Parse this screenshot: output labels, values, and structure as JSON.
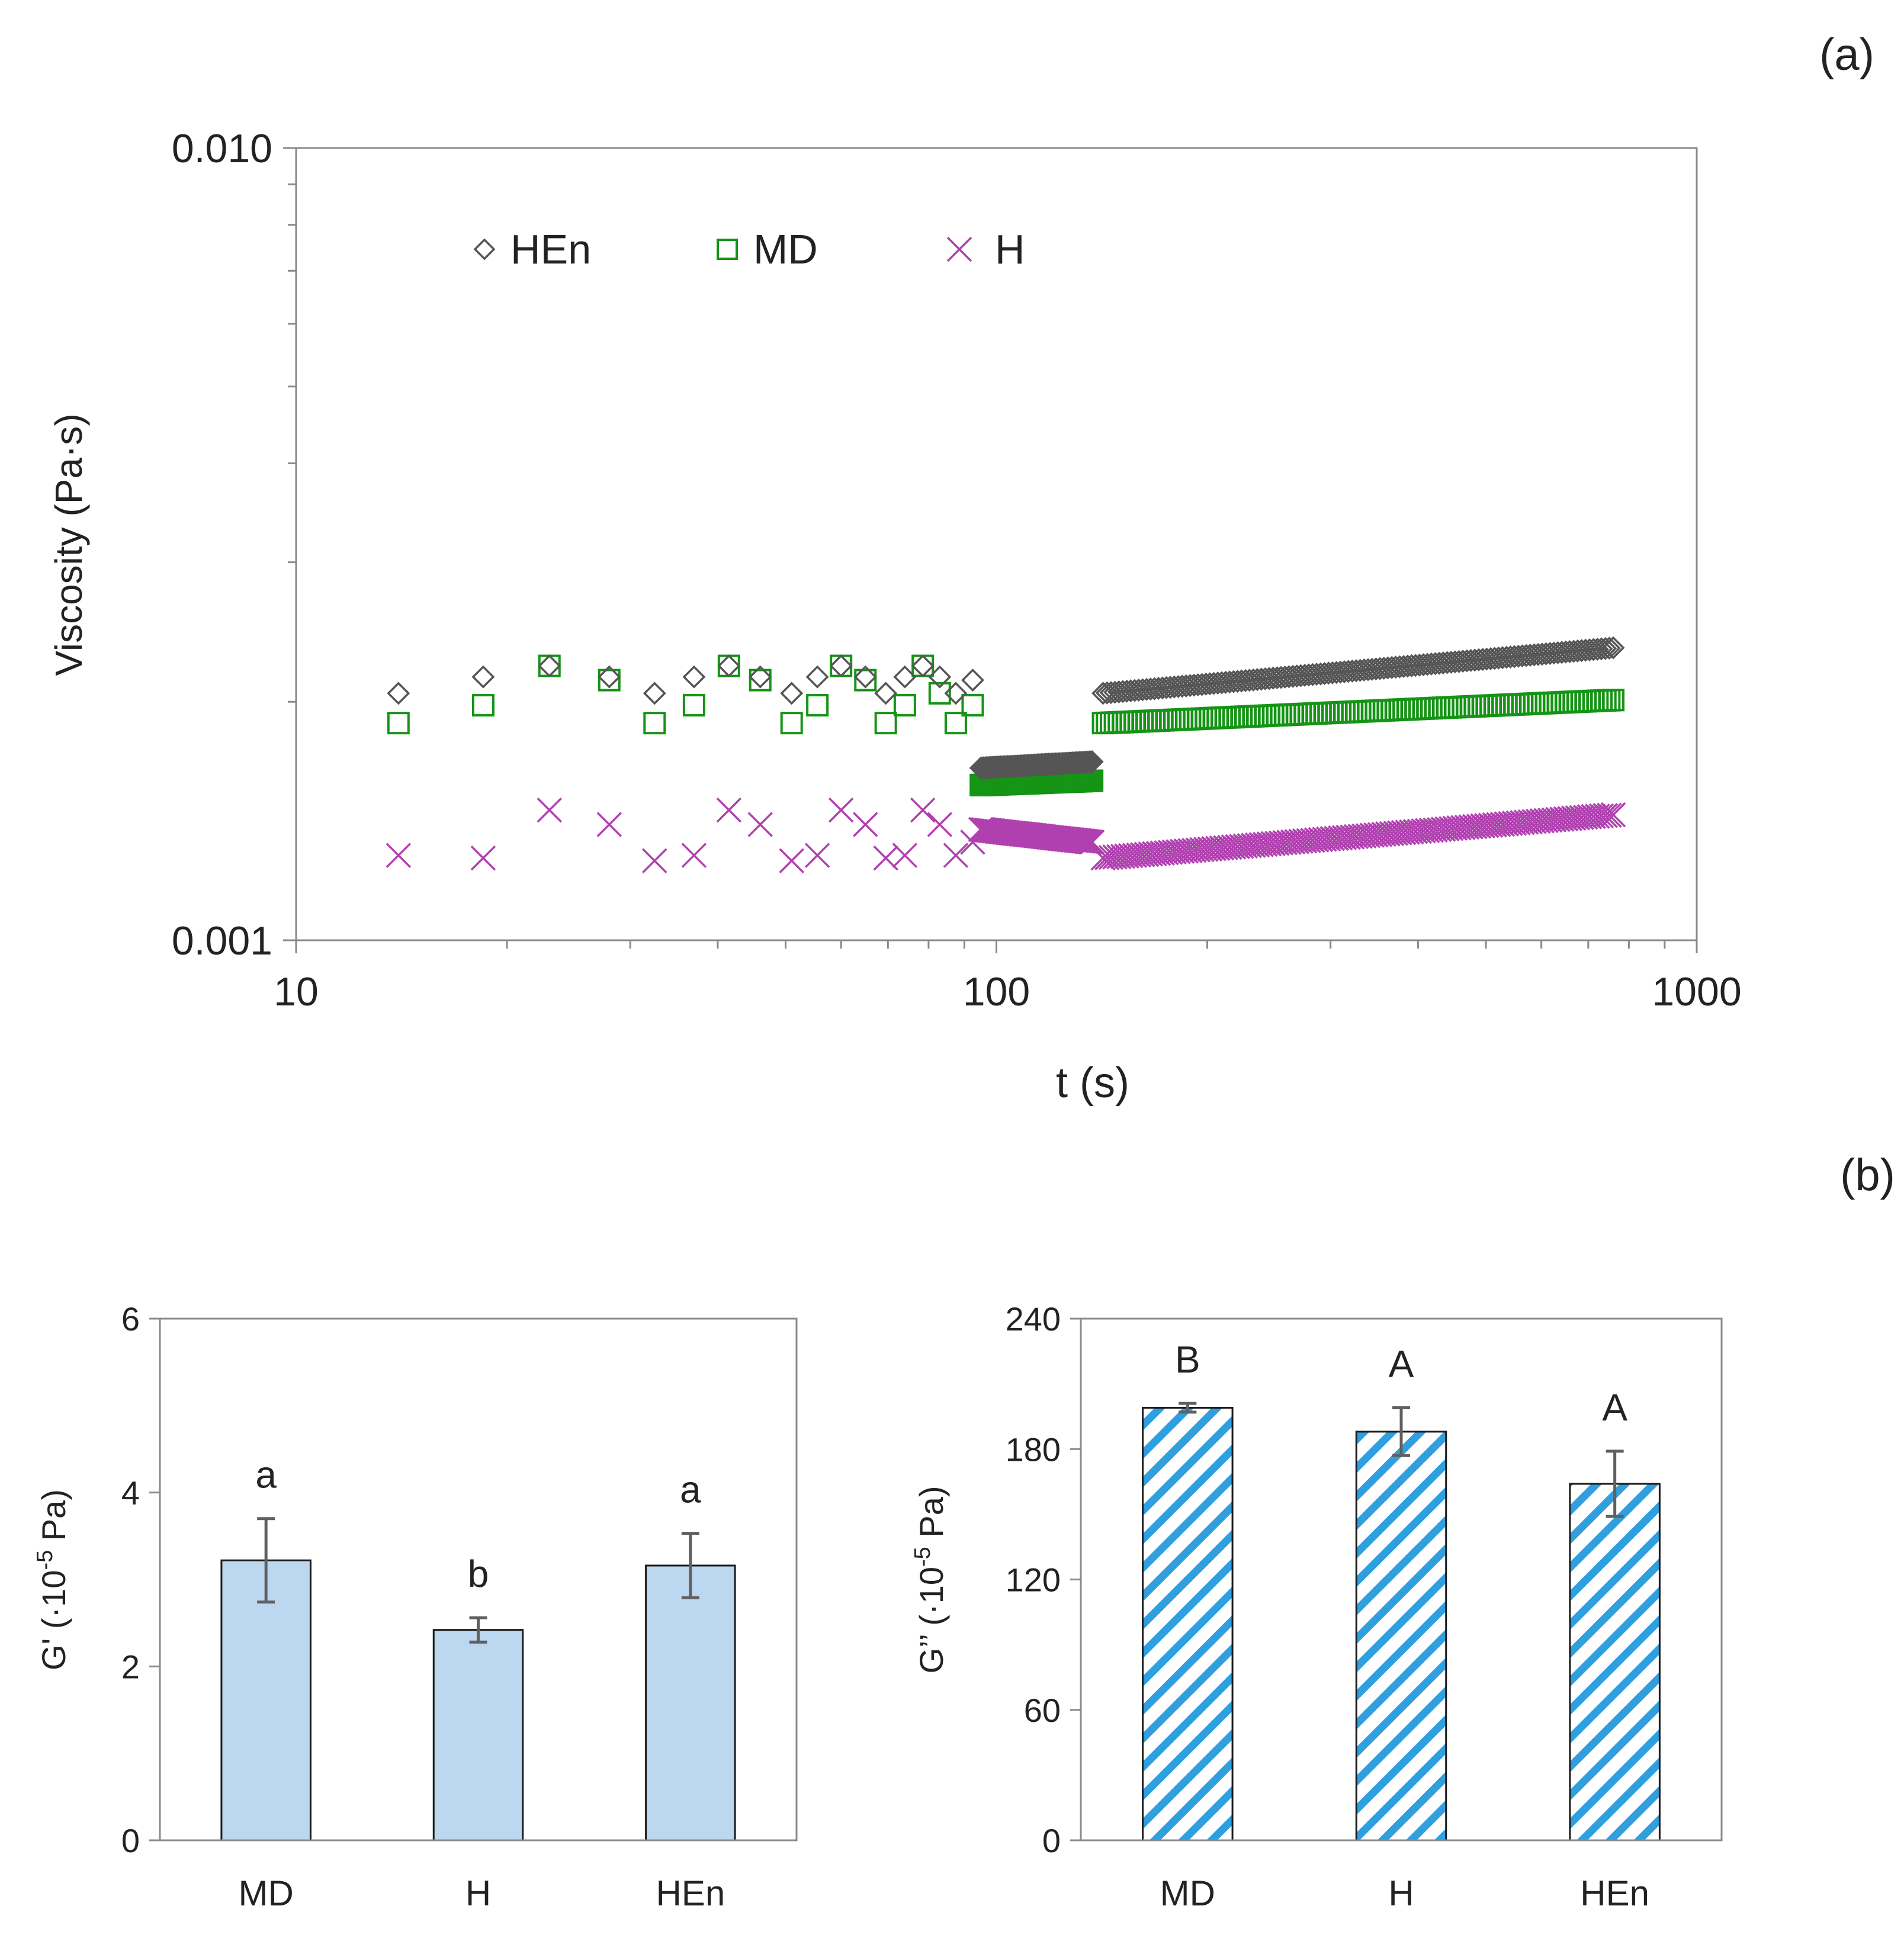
{
  "panel_labels": {
    "a": "(a)",
    "b": "(b)"
  },
  "colors": {
    "hen": "#555555",
    "md": "#159415",
    "h": "#b040b0",
    "bar_fill": "#bcd8f0",
    "hatch": "#2f9fe0",
    "error": "#606060"
  },
  "chart_data": [
    {
      "type": "scatter",
      "id": "viscosity",
      "title": "",
      "xlabel": "t (s)",
      "ylabel": "Viscosity (Pa·s)",
      "xscale": "log",
      "yscale": "log",
      "xlim": [
        10,
        1000
      ],
      "ylim": [
        0.001,
        0.01
      ],
      "xticks": [
        10,
        100,
        1000
      ],
      "xtick_labels": [
        "10",
        "100",
        "1000"
      ],
      "yticks": [
        0.001,
        0.01
      ],
      "ytick_labels": [
        "0.001",
        "0.010"
      ],
      "legend_position": "top-left",
      "series": [
        {
          "key": "hen",
          "name": "HEn",
          "marker": "diamond",
          "early": {
            "x": [
              14,
              18.5,
              23,
              28,
              32.5,
              37,
              41.5,
              46,
              51,
              55.5,
              60,
              65,
              69.5,
              74,
              78.5,
              83,
              87.5,
              92.5
            ],
            "y": [
              0.00205,
              0.00215,
              0.00222,
              0.00215,
              0.00205,
              0.00215,
              0.00222,
              0.00215,
              0.00205,
              0.00215,
              0.00222,
              0.00215,
              0.00205,
              0.00215,
              0.00222,
              0.00215,
              0.00205,
              0.00213
            ]
          },
          "dense": {
            "x_start": 95,
            "x_end": 137,
            "n": 80,
            "y_start": 0.00165,
            "y_end": 0.00168
          },
          "late": {
            "x_start": 142,
            "x_end": 760,
            "n": 130,
            "y_start": 0.00205,
            "y_end": 0.00234
          }
        },
        {
          "key": "md",
          "name": "MD",
          "marker": "square",
          "early": {
            "x": [
              14,
              18.5,
              23,
              28,
              32.5,
              37,
              41.5,
              46,
              51,
              55.5,
              60,
              65,
              69.5,
              74,
              78.5,
              83,
              87.5,
              92.5
            ],
            "y": [
              0.00188,
              0.00198,
              0.00222,
              0.00213,
              0.00188,
              0.00198,
              0.00222,
              0.00213,
              0.00188,
              0.00198,
              0.00222,
              0.00213,
              0.00188,
              0.00198,
              0.00222,
              0.00205,
              0.00188,
              0.00198
            ]
          },
          "dense": {
            "x_start": 95,
            "x_end": 137,
            "n": 80,
            "y_start": 0.00157,
            "y_end": 0.00159
          },
          "late": {
            "x_start": 142,
            "x_end": 760,
            "n": 130,
            "y_start": 0.00188,
            "y_end": 0.00201
          }
        },
        {
          "key": "h",
          "name": "H",
          "marker": "x",
          "early": {
            "x": [
              14,
              18.5,
              23,
              28,
              32.5,
              37,
              41.5,
              46,
              51,
              55.5,
              60,
              65,
              69.5,
              74,
              78.5,
              83,
              87.5,
              92.5
            ],
            "y": [
              0.00128,
              0.00127,
              0.00146,
              0.0014,
              0.00126,
              0.00128,
              0.00146,
              0.0014,
              0.00126,
              0.00128,
              0.00146,
              0.0014,
              0.00127,
              0.00128,
              0.00146,
              0.0014,
              0.00128,
              0.00133
            ]
          },
          "dense": {
            "x_start": 95,
            "x_end": 137,
            "n": 80,
            "y_start": 0.00138,
            "y_end": 0.00133
          },
          "late": {
            "x_start": 142,
            "x_end": 760,
            "n": 130,
            "y_start": 0.00127,
            "y_end": 0.00144
          }
        }
      ]
    },
    {
      "type": "bar",
      "id": "g-prime",
      "title": "",
      "xlabel": "",
      "ylabel_main": "G' (·10",
      "ylabel_sup": "-5",
      "ylabel_tail": " Pa)",
      "categories": [
        "MD",
        "H",
        "HEn"
      ],
      "values": [
        3.22,
        2.42,
        3.16
      ],
      "errors": [
        0.48,
        0.14,
        0.37
      ],
      "letters": [
        "a",
        "b",
        "a"
      ],
      "ylim": [
        0,
        6
      ],
      "yticks": [
        0,
        2,
        4,
        6
      ],
      "ytick_labels": [
        "0",
        "2",
        "4",
        "6"
      ],
      "style": "solid"
    },
    {
      "type": "bar",
      "id": "g-double-prime",
      "title": "",
      "xlabel": "",
      "ylabel_main": "G’’ (·10",
      "ylabel_sup": "-5",
      "ylabel_tail": " Pa)",
      "categories": [
        "MD",
        "H",
        "HEn"
      ],
      "values": [
        199,
        188,
        164
      ],
      "errors": [
        2,
        11,
        15
      ],
      "letters": [
        "B",
        "A",
        "A"
      ],
      "ylim": [
        0,
        240
      ],
      "yticks": [
        0,
        60,
        120,
        180,
        240
      ],
      "ytick_labels": [
        "0",
        "60",
        "120",
        "180",
        "240"
      ],
      "style": "hatched"
    }
  ]
}
